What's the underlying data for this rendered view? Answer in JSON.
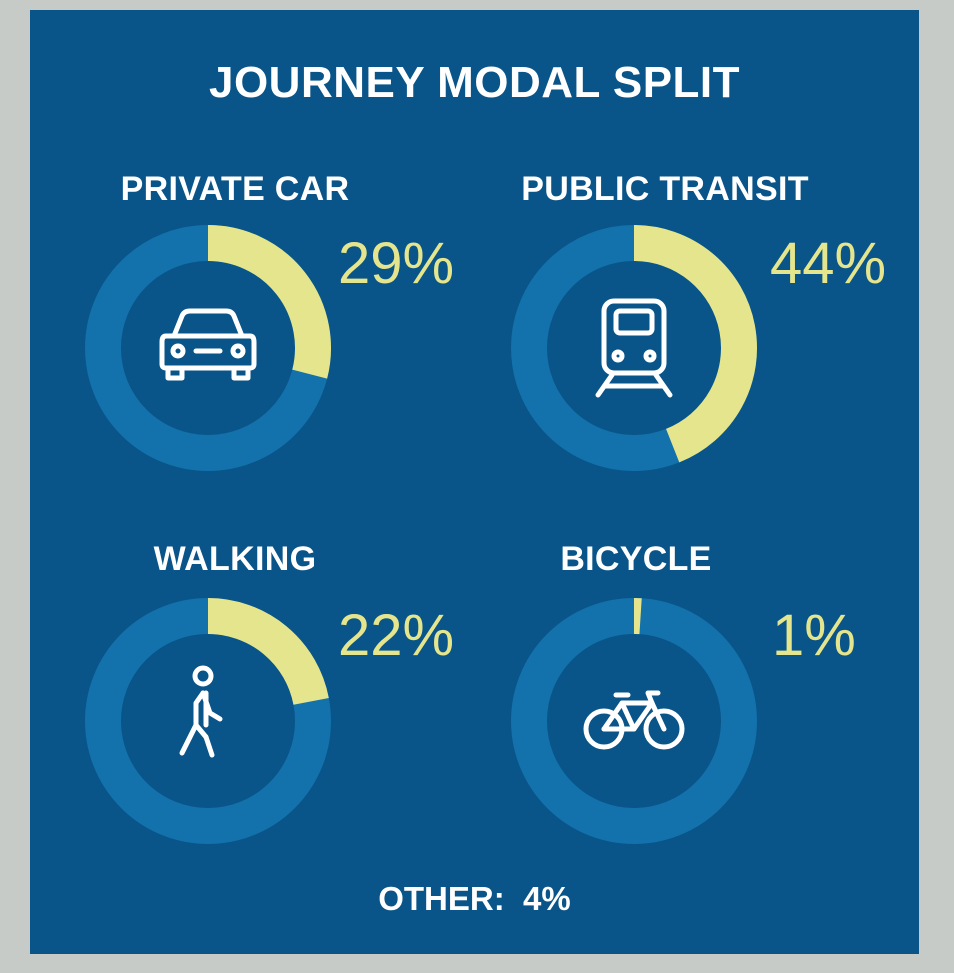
{
  "colors": {
    "page_bg": "#c7cbc7",
    "panel_bg": "#095488",
    "ring_bg": "#1371ab",
    "ring_fill": "#e4e58c",
    "icon": "#ffffff"
  },
  "chart_data": {
    "type": "pie",
    "title": "JOURNEY MODAL SPLIT",
    "categories": [
      "PRIVATE CAR",
      "PUBLIC TRANSIT",
      "WALKING",
      "BICYCLE",
      "OTHER"
    ],
    "values": [
      29,
      44,
      22,
      1,
      4
    ],
    "value_labels": [
      "29%",
      "44%",
      "22%",
      "1%",
      "4%"
    ],
    "icons": [
      "car-icon",
      "train-icon",
      "walking-person-icon",
      "bicycle-icon",
      ""
    ],
    "other_label": "OTHER:  4%"
  }
}
